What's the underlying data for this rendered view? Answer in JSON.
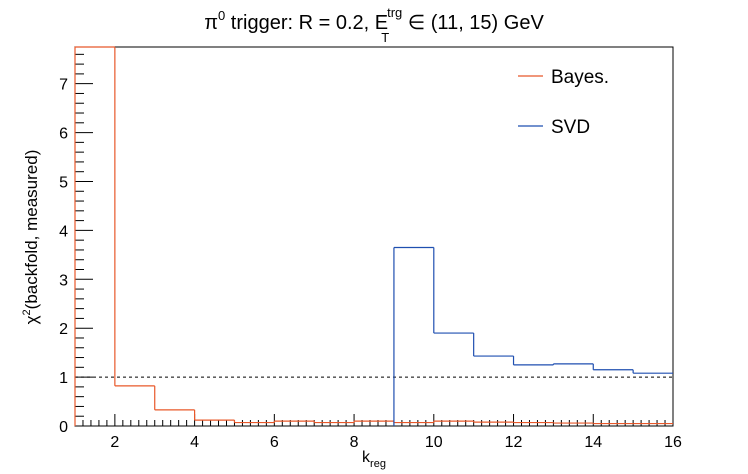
{
  "chart_data": {
    "type": "line",
    "title_main": "π",
    "title_main_sup": "0",
    "title_mid": " trigger: R = 0.2, E",
    "title_E_sup": "trg",
    "title_E_sub": "T",
    "title_end": " ∈ (11, 15) GeV",
    "xlabel_main": "k",
    "xlabel_sub": "reg",
    "ylabel_pre": "χ",
    "ylabel_sup": "2",
    "ylabel_post": "(backfold, measured)",
    "xlim": [
      1,
      16
    ],
    "ylim": [
      0,
      7.75
    ],
    "x_ticks": [
      "2",
      "4",
      "6",
      "8",
      "10",
      "12",
      "14",
      "16"
    ],
    "y_ticks": [
      "0",
      "1",
      "2",
      "3",
      "4",
      "5",
      "6",
      "7"
    ],
    "reference_line": 1,
    "grid": false,
    "legend_position": "top-right",
    "series": [
      {
        "name": "Bayes.",
        "color": "#e8582a",
        "style": "step",
        "bins": [
          [
            1,
            2,
            7.75
          ],
          [
            2,
            3,
            0.82
          ],
          [
            3,
            4,
            0.33
          ],
          [
            4,
            5,
            0.12
          ],
          [
            5,
            6,
            0.07
          ],
          [
            6,
            7,
            0.1
          ],
          [
            7,
            8,
            0.07
          ],
          [
            8,
            9,
            0.1
          ],
          [
            9,
            10,
            0.07
          ],
          [
            10,
            11,
            0.1
          ],
          [
            11,
            12,
            0.08
          ],
          [
            12,
            13,
            0.07
          ],
          [
            13,
            14,
            0.06
          ],
          [
            14,
            15,
            0.05
          ],
          [
            15,
            16,
            0.05
          ]
        ]
      },
      {
        "name": "SVD",
        "color": "#1f4fb0",
        "style": "step",
        "bins": [
          [
            9,
            10,
            3.65
          ],
          [
            10,
            11,
            1.9
          ],
          [
            11,
            12,
            1.43
          ],
          [
            12,
            13,
            1.25
          ],
          [
            13,
            14,
            1.27
          ],
          [
            14,
            15,
            1.15
          ],
          [
            15,
            16,
            1.08
          ]
        ]
      }
    ]
  }
}
